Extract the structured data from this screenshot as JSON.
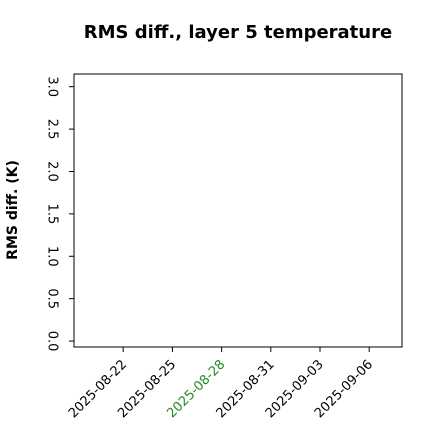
{
  "chart_data": {
    "type": "line",
    "title": "RMS diff., layer 5 temperature",
    "ylabel": "RMS diff. (K)",
    "series": [],
    "xlim": [
      "2025-08-19",
      "2025-09-08"
    ],
    "xticks": [
      "2025-08-22",
      "2025-08-25",
      "2025-08-28",
      "2025-08-31",
      "2025-09-03",
      "2025-09-06"
    ],
    "xtick_colors": [
      "#000000",
      "#000000",
      "#228b22",
      "#000000",
      "#000000",
      "#000000"
    ],
    "ylim": [
      -0.07,
      3.15
    ],
    "yticks": [
      {
        "value": 0,
        "label": "0.0"
      },
      0.5,
      {
        "value": 1,
        "label": "1.0"
      },
      1.5,
      {
        "value": 2,
        "label": "2.0"
      },
      2.5,
      {
        "value": 3,
        "label": "3.0"
      }
    ]
  }
}
